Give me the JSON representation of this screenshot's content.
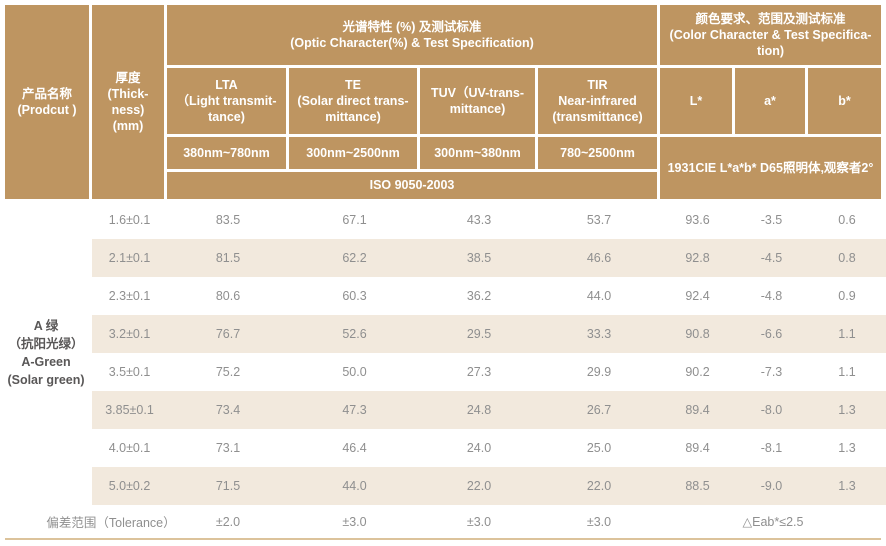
{
  "colors": {
    "header_bg": "#BE9561",
    "stripe_bg": "#F2E9DD",
    "data_text": "#8F8F8F",
    "header_text": "#FFFFFF",
    "product_text": "#595757",
    "bottom_line": "#DCC39B"
  },
  "header": {
    "product": "产品名称\n(Prodcut )",
    "thickness": "厚度\n(Thick-\nness)\n(mm)",
    "optic_group": "光谱特性 (%) 及测试标准\n(Optic Character(%) & Test Specification)",
    "color_group": "颜色要求、范围及测试标准\n(Color Character & Test Specifica-\ntion)",
    "col_lta": "LTA\n（Light transmit-\ntance)",
    "col_te": "TE\n(Solar direct trans-\nmittance)",
    "col_tuv": "TUV（UV-trans-\nmittance)",
    "col_tir": "TIR\nNear-infrared\n(transmittance)",
    "col_l": "L*",
    "col_a": "a*",
    "col_b": "b*",
    "range_lta": "380nm~780nm",
    "range_te": "300nm~2500nm",
    "range_tuv": "300nm~380nm",
    "range_tir": "780~2500nm",
    "iso": "ISO 9050-2003",
    "cie": "1931CIE L*a*b*  D65照明体,观察者2°"
  },
  "body": {
    "product_name": "A 绿\n（抗阳光绿）\nA-Green\n(Solar green)",
    "rows": [
      {
        "thickness": "1.6±0.1",
        "values": [
          "83.5",
          "67.1",
          "43.3",
          "53.7",
          "93.6",
          "-3.5",
          "0.6"
        ]
      },
      {
        "thickness": "2.1±0.1",
        "values": [
          "81.5",
          "62.2",
          "38.5",
          "46.6",
          "92.8",
          "-4.5",
          "0.8"
        ]
      },
      {
        "thickness": "2.3±0.1",
        "values": [
          "80.6",
          "60.3",
          "36.2",
          "44.0",
          "92.4",
          "-4.8",
          "0.9"
        ]
      },
      {
        "thickness": "3.2±0.1",
        "values": [
          "76.7",
          "52.6",
          "29.5",
          "33.3",
          "90.8",
          "-6.6",
          "1.1"
        ]
      },
      {
        "thickness": "3.5±0.1",
        "values": [
          "75.2",
          "50.0",
          "27.3",
          "29.9",
          "90.2",
          "-7.3",
          "1.1"
        ]
      },
      {
        "thickness": "3.85±0.1",
        "values": [
          "73.4",
          "47.3",
          "24.8",
          "26.7",
          "89.4",
          "-8.0",
          "1.3"
        ]
      },
      {
        "thickness": "4.0±0.1",
        "values": [
          "73.1",
          "46.4",
          "24.0",
          "25.0",
          "89.4",
          "-8.1",
          "1.3"
        ]
      },
      {
        "thickness": "5.0±0.2",
        "values": [
          "71.5",
          "44.0",
          "22.0",
          "22.0",
          "88.5",
          "-9.0",
          "1.3"
        ]
      }
    ],
    "tolerance": {
      "label": "偏差范围（Tolerance）",
      "values": [
        "±2.0",
        "±3.0",
        "±3.0",
        "±3.0"
      ],
      "color_tolerance": "△Eab*≤2.5"
    }
  }
}
